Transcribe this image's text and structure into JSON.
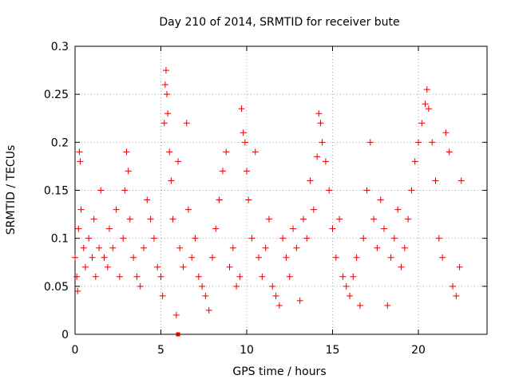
{
  "chart_data": {
    "type": "scatter",
    "title": "Day 210 of 2014, SRMTID for receiver bute",
    "xlabel": "GPS time / hours",
    "ylabel": "SRMTID / TECUs",
    "xlim": [
      0,
      24
    ],
    "ylim": [
      0,
      0.3
    ],
    "x_ticks": [
      0,
      5,
      10,
      15,
      20
    ],
    "x_tick_labels": [
      "0",
      "5",
      "10",
      "15",
      "20"
    ],
    "y_ticks": [
      0,
      0.05,
      0.1,
      0.15,
      0.2,
      0.25,
      0.3
    ],
    "y_tick_labels": [
      "0",
      "0.05",
      "0.1",
      "0.15",
      "0.2",
      "0.25",
      "0.3"
    ],
    "grid": true,
    "marker": "+",
    "color": "#e00000",
    "series": [
      {
        "name": "SRMTID",
        "points": [
          [
            0.0,
            0.08
          ],
          [
            0.1,
            0.06
          ],
          [
            0.15,
            0.045
          ],
          [
            0.2,
            0.11
          ],
          [
            0.25,
            0.19
          ],
          [
            0.3,
            0.18
          ],
          [
            0.35,
            0.13
          ],
          [
            0.5,
            0.09
          ],
          [
            0.6,
            0.07
          ],
          [
            0.8,
            0.1
          ],
          [
            1.0,
            0.08
          ],
          [
            1.1,
            0.12
          ],
          [
            1.2,
            0.06
          ],
          [
            1.4,
            0.09
          ],
          [
            1.5,
            0.15
          ],
          [
            1.7,
            0.08
          ],
          [
            1.9,
            0.07
          ],
          [
            2.0,
            0.11
          ],
          [
            2.2,
            0.09
          ],
          [
            2.4,
            0.13
          ],
          [
            2.6,
            0.06
          ],
          [
            2.8,
            0.1
          ],
          [
            2.9,
            0.15
          ],
          [
            3.0,
            0.19
          ],
          [
            3.1,
            0.17
          ],
          [
            3.2,
            0.12
          ],
          [
            3.4,
            0.08
          ],
          [
            3.6,
            0.06
          ],
          [
            3.8,
            0.05
          ],
          [
            4.0,
            0.09
          ],
          [
            4.2,
            0.14
          ],
          [
            4.4,
            0.12
          ],
          [
            4.6,
            0.1
          ],
          [
            4.8,
            0.07
          ],
          [
            5.0,
            0.06
          ],
          [
            5.1,
            0.04
          ],
          [
            5.2,
            0.22
          ],
          [
            5.25,
            0.26
          ],
          [
            5.3,
            0.275
          ],
          [
            5.35,
            0.25
          ],
          [
            5.4,
            0.23
          ],
          [
            5.5,
            0.19
          ],
          [
            5.6,
            0.16
          ],
          [
            5.7,
            0.12
          ],
          [
            5.9,
            0.02
          ],
          [
            6.0,
            0.18
          ],
          [
            6.1,
            0.09
          ],
          [
            6.3,
            0.07
          ],
          [
            6.5,
            0.22
          ],
          [
            6.6,
            0.13
          ],
          [
            6.8,
            0.08
          ],
          [
            7.0,
            0.1
          ],
          [
            7.2,
            0.06
          ],
          [
            7.4,
            0.05
          ],
          [
            7.6,
            0.04
          ],
          [
            7.8,
            0.025
          ],
          [
            8.0,
            0.08
          ],
          [
            8.2,
            0.11
          ],
          [
            8.4,
            0.14
          ],
          [
            8.6,
            0.17
          ],
          [
            8.8,
            0.19
          ],
          [
            9.0,
            0.07
          ],
          [
            9.2,
            0.09
          ],
          [
            9.4,
            0.05
          ],
          [
            9.6,
            0.06
          ],
          [
            9.7,
            0.235
          ],
          [
            9.8,
            0.21
          ],
          [
            9.9,
            0.2
          ],
          [
            10.0,
            0.17
          ],
          [
            10.1,
            0.14
          ],
          [
            10.3,
            0.1
          ],
          [
            10.5,
            0.19
          ],
          [
            10.7,
            0.08
          ],
          [
            10.9,
            0.06
          ],
          [
            11.1,
            0.09
          ],
          [
            11.3,
            0.12
          ],
          [
            11.5,
            0.05
          ],
          [
            11.7,
            0.04
          ],
          [
            11.9,
            0.03
          ],
          [
            12.1,
            0.1
          ],
          [
            12.3,
            0.08
          ],
          [
            12.5,
            0.06
          ],
          [
            12.7,
            0.11
          ],
          [
            12.9,
            0.09
          ],
          [
            13.1,
            0.035
          ],
          [
            13.3,
            0.12
          ],
          [
            13.5,
            0.1
          ],
          [
            13.7,
            0.16
          ],
          [
            13.9,
            0.13
          ],
          [
            14.1,
            0.185
          ],
          [
            14.2,
            0.23
          ],
          [
            14.3,
            0.22
          ],
          [
            14.4,
            0.2
          ],
          [
            14.6,
            0.18
          ],
          [
            14.8,
            0.15
          ],
          [
            15.0,
            0.11
          ],
          [
            15.2,
            0.08
          ],
          [
            15.4,
            0.12
          ],
          [
            15.6,
            0.06
          ],
          [
            15.8,
            0.05
          ],
          [
            16.0,
            0.04
          ],
          [
            16.2,
            0.06
          ],
          [
            16.4,
            0.08
          ],
          [
            16.6,
            0.03
          ],
          [
            16.8,
            0.1
          ],
          [
            17.0,
            0.15
          ],
          [
            17.2,
            0.2
          ],
          [
            17.4,
            0.12
          ],
          [
            17.6,
            0.09
          ],
          [
            17.8,
            0.14
          ],
          [
            18.0,
            0.11
          ],
          [
            18.2,
            0.03
          ],
          [
            18.4,
            0.08
          ],
          [
            18.6,
            0.1
          ],
          [
            18.8,
            0.13
          ],
          [
            19.0,
            0.07
          ],
          [
            19.2,
            0.09
          ],
          [
            19.4,
            0.12
          ],
          [
            19.6,
            0.15
          ],
          [
            19.8,
            0.18
          ],
          [
            20.0,
            0.2
          ],
          [
            20.2,
            0.22
          ],
          [
            20.4,
            0.24
          ],
          [
            20.5,
            0.255
          ],
          [
            20.6,
            0.235
          ],
          [
            20.8,
            0.2
          ],
          [
            21.0,
            0.16
          ],
          [
            21.2,
            0.1
          ],
          [
            21.4,
            0.08
          ],
          [
            21.6,
            0.21
          ],
          [
            21.8,
            0.19
          ],
          [
            22.0,
            0.05
          ],
          [
            22.2,
            0.04
          ],
          [
            22.4,
            0.07
          ],
          [
            22.5,
            0.16
          ]
        ]
      }
    ],
    "special_points": [
      [
        6.0,
        0.0
      ]
    ]
  }
}
